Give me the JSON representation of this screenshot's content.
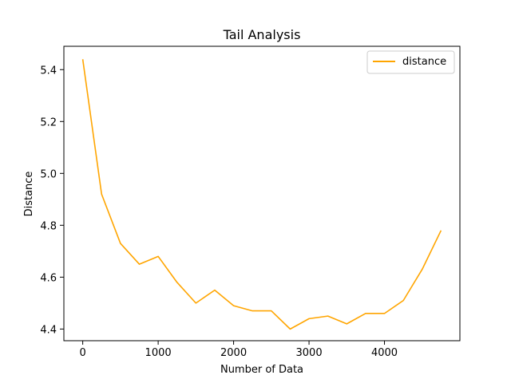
{
  "chart_data": {
    "type": "line",
    "title": "Tail Analysis",
    "xlabel": "Number of Data",
    "ylabel": "Distance",
    "xlim": [
      -250,
      5000
    ],
    "ylim": [
      4.355,
      5.49
    ],
    "xticks": [
      0,
      1000,
      2000,
      3000,
      4000
    ],
    "yticks": [
      4.4,
      4.6,
      4.8,
      5.0,
      5.2,
      5.4
    ],
    "xtick_labels": [
      "0",
      "1000",
      "2000",
      "3000",
      "4000"
    ],
    "ytick_labels": [
      "4.4",
      "4.6",
      "4.8",
      "5.0",
      "5.2",
      "5.4"
    ],
    "grid": false,
    "legend_position": "top-right",
    "series": [
      {
        "name": "distance",
        "color": "#ffa500",
        "x": [
          0,
          250,
          500,
          750,
          1000,
          1250,
          1500,
          1750,
          2000,
          2250,
          2500,
          2750,
          3000,
          3250,
          3500,
          3750,
          4000,
          4250,
          4500,
          4750
        ],
        "y": [
          5.44,
          4.92,
          4.73,
          4.65,
          4.68,
          4.58,
          4.5,
          4.55,
          4.49,
          4.47,
          4.47,
          4.4,
          4.44,
          4.45,
          4.42,
          4.46,
          4.46,
          4.51,
          4.63,
          4.78
        ]
      }
    ]
  }
}
